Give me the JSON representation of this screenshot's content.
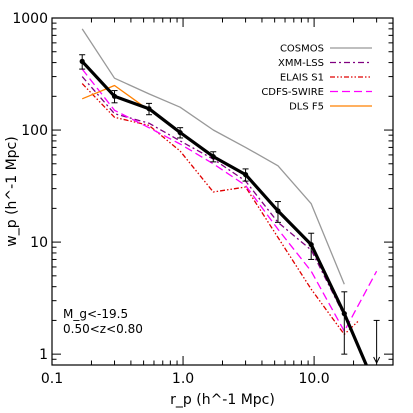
{
  "chart_data": {
    "type": "line",
    "title": "",
    "xlabel": "r_p (h^-1 Mpc)",
    "ylabel": "w_p (h^-1 Mpc)",
    "xscale": "log",
    "yscale": "log",
    "xlim": [
      0.1,
      40
    ],
    "ylim": [
      0.8,
      1000
    ],
    "xticks": [
      {
        "value": 0.1,
        "label": "0.1"
      },
      {
        "value": 1.0,
        "label": "1.0"
      },
      {
        "value": 10.0,
        "label": "10.0"
      }
    ],
    "yticks": [
      {
        "value": 1,
        "label": "1"
      },
      {
        "value": 10,
        "label": "10"
      },
      {
        "value": 100,
        "label": "100"
      },
      {
        "value": 1000,
        "label": "1000"
      }
    ],
    "grid": false,
    "legend_position": "top-right",
    "annotations": [
      "M_g<-19.5",
      "0.50<z<0.80"
    ],
    "series": [
      {
        "name": "COSMOS",
        "color": "#999999",
        "dash": "solid",
        "x": [
          0.17,
          0.3,
          0.55,
          0.95,
          1.7,
          3.0,
          5.3,
          9.5,
          17
        ],
        "y": [
          800,
          290,
          210,
          160,
          100,
          70,
          48,
          22,
          4.2
        ]
      },
      {
        "name": "XMM-LSS",
        "color": "#800080",
        "dash": "dash-dot",
        "x": [
          0.17,
          0.3,
          0.55,
          0.95,
          1.7,
          3.0,
          5.3,
          9.5,
          17
        ],
        "y": [
          300,
          140,
          115,
          80,
          55,
          35,
          15,
          8.5,
          2.2
        ]
      },
      {
        "name": "ELAIS S1",
        "color": "#e00000",
        "dash": "dash-dot-dot",
        "x": [
          0.17,
          0.3,
          0.55,
          0.95,
          1.7,
          3.0,
          5.3,
          9.5,
          17,
          22
        ],
        "y": [
          260,
          130,
          110,
          65,
          28,
          31,
          11,
          3.8,
          1.5,
          2.0
        ]
      },
      {
        "name": "CDFS-SWIRE",
        "color": "#ff00ff",
        "dash": "dashed",
        "x": [
          0.17,
          0.3,
          0.55,
          0.95,
          1.7,
          3.0,
          5.3,
          9.5,
          17,
          30
        ],
        "y": [
          350,
          150,
          105,
          75,
          50,
          32,
          13,
          5.5,
          1.6,
          5.5
        ]
      },
      {
        "name": "DLS F5",
        "color": "#ff8000",
        "dash": "solid",
        "x": [
          0.17,
          0.3,
          0.55
        ],
        "y": [
          190,
          250,
          150
        ]
      },
      {
        "name": "",
        "color": "#000000",
        "dash": "solid",
        "weight": "bold",
        "x": [
          0.17,
          0.3,
          0.55,
          0.95,
          1.7,
          3.0,
          5.3,
          9.5,
          17,
          25
        ],
        "y": [
          410,
          200,
          155,
          95,
          58,
          40,
          19,
          9.5,
          2.3,
          0.8
        ],
        "yerr": [
          60,
          25,
          18,
          10,
          6,
          5,
          4,
          2.5,
          1.3,
          0
        ]
      }
    ],
    "upper_limit": {
      "x": 30,
      "y": 2.0
    }
  }
}
